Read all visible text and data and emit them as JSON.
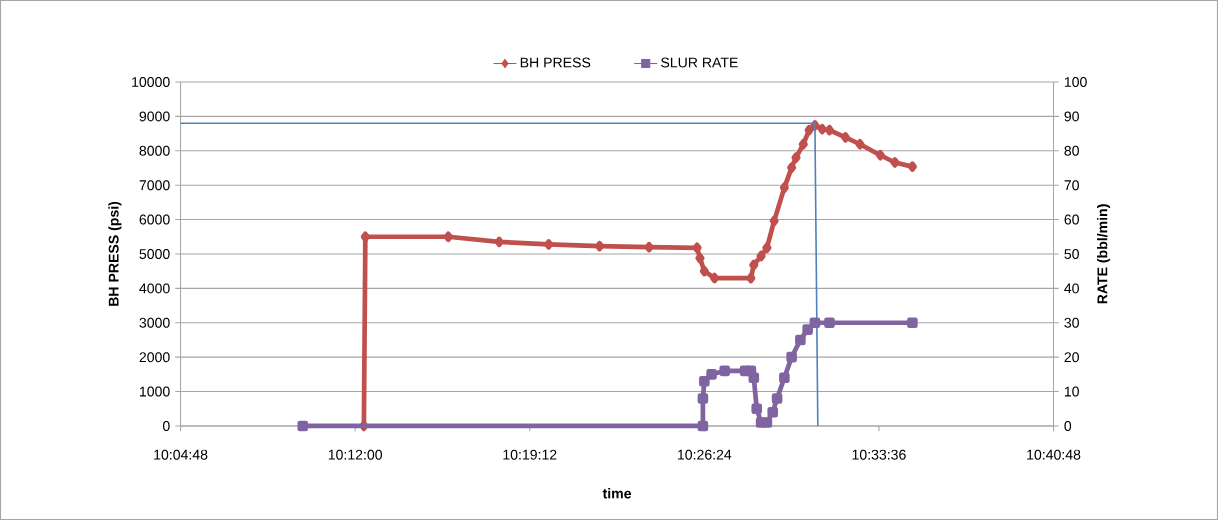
{
  "chart_data": {
    "type": "line",
    "xlabel": "time",
    "ylabel": "BH PRESS (psi)",
    "y2label": "RATE (bbl/min)",
    "xlim": [
      10.08,
      10.68
    ],
    "xticks": [
      {
        "value": 10.08,
        "label": "10:04:48"
      },
      {
        "value": 10.2,
        "label": "10:12:00"
      },
      {
        "value": 10.32,
        "label": "10:19:12"
      },
      {
        "value": 10.44,
        "label": "10:26:24"
      },
      {
        "value": 10.56,
        "label": "10:33:36"
      },
      {
        "value": 10.68,
        "label": "10:40:48"
      }
    ],
    "ylim": [
      0,
      10000
    ],
    "yticks": [
      0,
      1000,
      2000,
      3000,
      4000,
      5000,
      6000,
      7000,
      8000,
      9000,
      10000
    ],
    "y2lim": [
      0,
      100
    ],
    "y2ticks": [
      0,
      10,
      20,
      30,
      40,
      50,
      60,
      70,
      80,
      90,
      100
    ],
    "grid": "y",
    "legend": "top",
    "series": [
      {
        "name": "BH PRESS",
        "color": "#c0504d",
        "marker": "diamond",
        "x": [
          10.206,
          10.207,
          10.264,
          10.299,
          10.333,
          10.368,
          10.402,
          10.435,
          10.437,
          10.44,
          10.447,
          10.472,
          10.474,
          10.479,
          10.483,
          10.488,
          10.495,
          10.5,
          10.503,
          10.508,
          10.512,
          10.516,
          10.521,
          10.526,
          10.537,
          10.547,
          10.561,
          10.571,
          10.583
        ],
        "values": [
          0,
          5500,
          5500,
          5350,
          5280,
          5230,
          5200,
          5180,
          4880,
          4500,
          4300,
          4300,
          4680,
          4940,
          5180,
          5960,
          6930,
          7510,
          7800,
          8190,
          8600,
          8740,
          8630,
          8600,
          8390,
          8190,
          7870,
          7660,
          7540
        ]
      },
      {
        "name": "SLUR RATE",
        "color": "#8064a2",
        "marker": "square",
        "axis": "y2",
        "x": [
          10.164,
          10.439,
          10.439,
          10.44,
          10.445,
          10.454,
          10.468,
          10.472,
          10.474,
          10.476,
          10.479,
          10.483,
          10.487,
          10.49,
          10.495,
          10.5,
          10.506,
          10.511,
          10.516,
          10.526,
          10.583
        ],
        "values": [
          0,
          0,
          8,
          13,
          15,
          16,
          16,
          16,
          14,
          5,
          1,
          1,
          4,
          8,
          14,
          20,
          25,
          28,
          30,
          30,
          30
        ]
      },
      {
        "color": "#4f81bd",
        "axis": "y2",
        "x": [
          10.08,
          10.516,
          10.518
        ],
        "values": [
          88,
          88,
          0
        ]
      }
    ]
  }
}
